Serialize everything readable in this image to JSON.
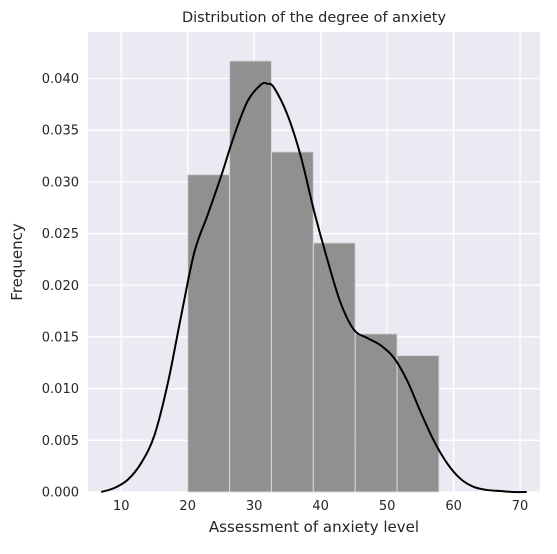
{
  "chart_data": {
    "type": "bar",
    "title": "Distribution of the degree of anxiety",
    "xlabel": "Assessment of anxiety level",
    "ylabel": "Frequency",
    "xlim": [
      5,
      73
    ],
    "ylim": [
      0,
      0.0445
    ],
    "xticks": [
      10,
      20,
      30,
      40,
      50,
      60,
      70
    ],
    "yticks": [
      0.0,
      0.005,
      0.01,
      0.015,
      0.02,
      0.025,
      0.03,
      0.035,
      0.04
    ],
    "ytick_labels": [
      "0.000",
      "0.005",
      "0.010",
      "0.015",
      "0.020",
      "0.025",
      "0.030",
      "0.035",
      "0.040"
    ],
    "grid": true,
    "histogram": {
      "bin_edges": [
        20,
        26.3,
        32.6,
        38.9,
        45.2,
        51.5,
        57.8
      ],
      "values": [
        0.0307,
        0.0417,
        0.0329,
        0.0241,
        0.0153,
        0.0132
      ]
    },
    "kde": {
      "x": [
        7,
        9,
        11,
        13,
        15,
        17,
        19,
        21,
        23,
        25,
        27,
        29,
        31,
        32,
        33,
        35,
        37,
        39,
        41,
        43,
        45,
        47,
        49,
        51,
        53,
        55,
        57,
        59,
        61,
        63,
        65,
        67,
        69,
        71
      ],
      "y": [
        0.0,
        0.0004,
        0.0012,
        0.0028,
        0.0055,
        0.0105,
        0.017,
        0.0232,
        0.0268,
        0.0305,
        0.0345,
        0.0378,
        0.0394,
        0.0395,
        0.0391,
        0.0365,
        0.0325,
        0.0272,
        0.0225,
        0.0183,
        0.0157,
        0.0149,
        0.0142,
        0.013,
        0.0108,
        0.0078,
        0.005,
        0.0028,
        0.0013,
        0.0005,
        0.0002,
        0.0001,
        0.0,
        0.0
      ]
    },
    "colors": {
      "background": "#eaeaf2",
      "grid": "#ffffff",
      "bars": "#808080",
      "line": "#000000"
    }
  }
}
